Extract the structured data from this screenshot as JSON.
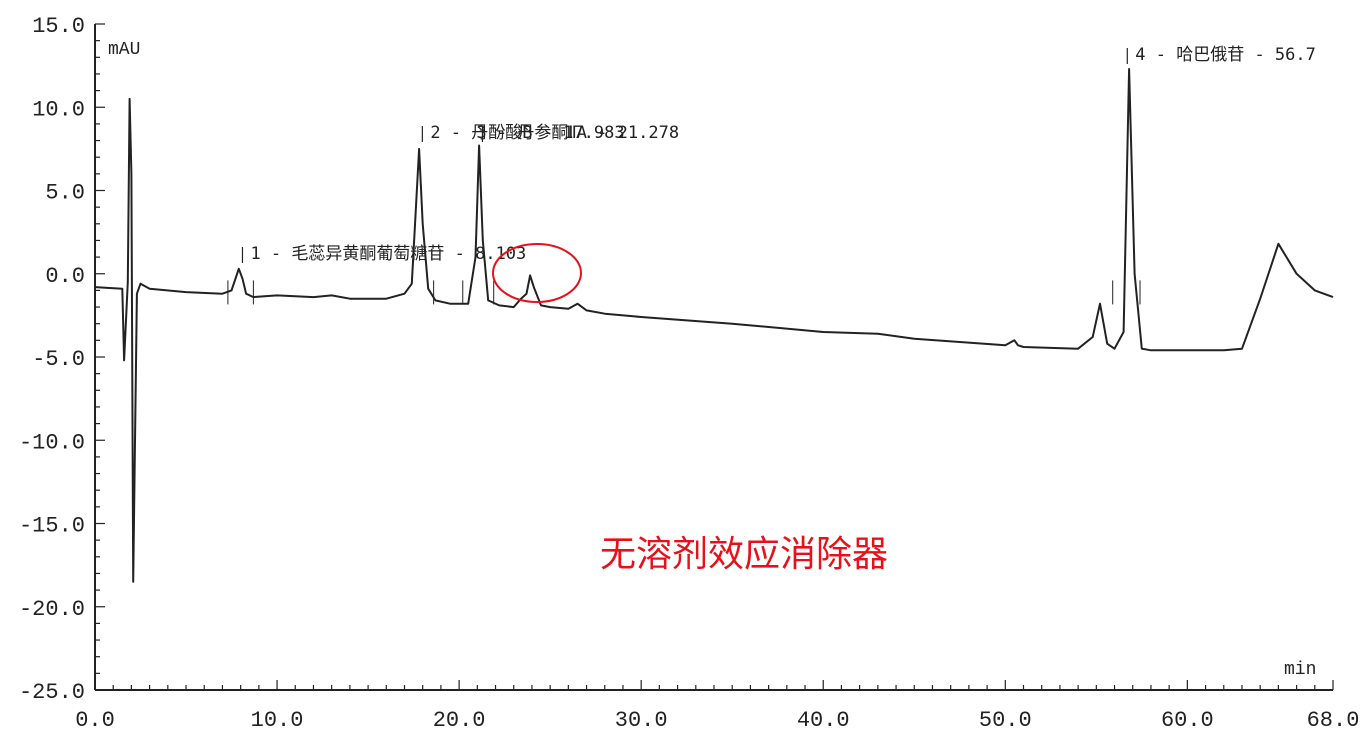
{
  "chart_data": {
    "type": "line",
    "title": "",
    "xlabel": "min",
    "ylabel": "mAU",
    "xlim": [
      0,
      68
    ],
    "ylim": [
      -25,
      15
    ],
    "x_ticks": [
      "0.0",
      "10.0",
      "20.0",
      "30.0",
      "40.0",
      "50.0",
      "60.0",
      "68.0"
    ],
    "y_ticks": [
      "15.0",
      "10.0",
      "5.0",
      "0.0",
      "-5.0",
      "-10.0",
      "-15.0",
      "-20.0",
      "-25.0"
    ],
    "x_tick_values": [
      0,
      10,
      20,
      30,
      40,
      50,
      60,
      68
    ],
    "y_tick_values": [
      15,
      10,
      5,
      0,
      -5,
      -10,
      -15,
      -20,
      -25
    ],
    "grid": false,
    "series": [
      {
        "x": [
          0,
          1.5,
          1.6,
          1.8,
          1.9,
          2.0,
          2.1,
          2.3,
          2.5,
          3,
          5,
          7,
          7.5,
          7.9,
          8.1,
          8.3,
          8.7,
          10,
          12,
          13,
          14,
          16,
          17,
          17.4,
          17.8,
          18.0,
          18.3,
          18.7,
          19.5,
          20.5,
          20.9,
          21.1,
          21.3,
          21.6,
          22.2,
          23,
          23.4,
          23.7,
          23.9,
          24.1,
          24.5,
          25,
          26,
          26.5,
          27,
          28,
          30,
          35,
          40,
          43,
          45,
          50,
          50.5,
          50.7,
          51,
          54,
          54.8,
          55.2,
          55.6,
          56,
          56.5,
          56.8,
          57.1,
          57.5,
          58,
          60,
          62,
          63,
          64,
          65,
          66,
          67,
          68
        ],
        "y": [
          -0.8,
          -0.9,
          -5.2,
          -0.5,
          10.5,
          6,
          -18.5,
          -1.2,
          -0.6,
          -0.9,
          -1.1,
          -1.2,
          -1.0,
          0.3,
          -0.3,
          -1.2,
          -1.4,
          -1.3,
          -1.4,
          -1.3,
          -1.5,
          -1.5,
          -1.2,
          -0.6,
          7.5,
          3,
          -0.9,
          -1.6,
          -1.8,
          -1.8,
          1,
          7.7,
          2,
          -1.6,
          -1.9,
          -2.0,
          -1.5,
          -1.2,
          -0.1,
          -0.8,
          -1.9,
          -2.0,
          -2.1,
          -1.8,
          -2.2,
          -2.4,
          -2.6,
          -3.0,
          -3.5,
          -3.6,
          -3.9,
          -4.3,
          -4.0,
          -4.3,
          -4.4,
          -4.5,
          -3.8,
          -1.8,
          -4.2,
          -4.5,
          -3.5,
          12.3,
          0,
          -4.5,
          -4.6,
          -4.6,
          -4.6,
          -4.5,
          -1.5,
          1.8,
          0,
          -1.0,
          -1.4
        ]
      }
    ],
    "peak_labels": [
      {
        "text": "1 - 毛蕊异黄酮葡萄糖苷 - 8.103",
        "x": 8.1
      },
      {
        "text": "2 - 丹酚酸B - 17.983",
        "x": 17.98
      },
      {
        "text": "3 - 丹参酮ⅡA - 21.278",
        "x": 21.28
      },
      {
        "text": "4 - 哈巴俄苷 - 56.7",
        "x": 56.7
      }
    ],
    "annotations": [
      "无溶剂效应消除器"
    ],
    "annotation_color": "#e8111a",
    "line_color": "#222222"
  }
}
